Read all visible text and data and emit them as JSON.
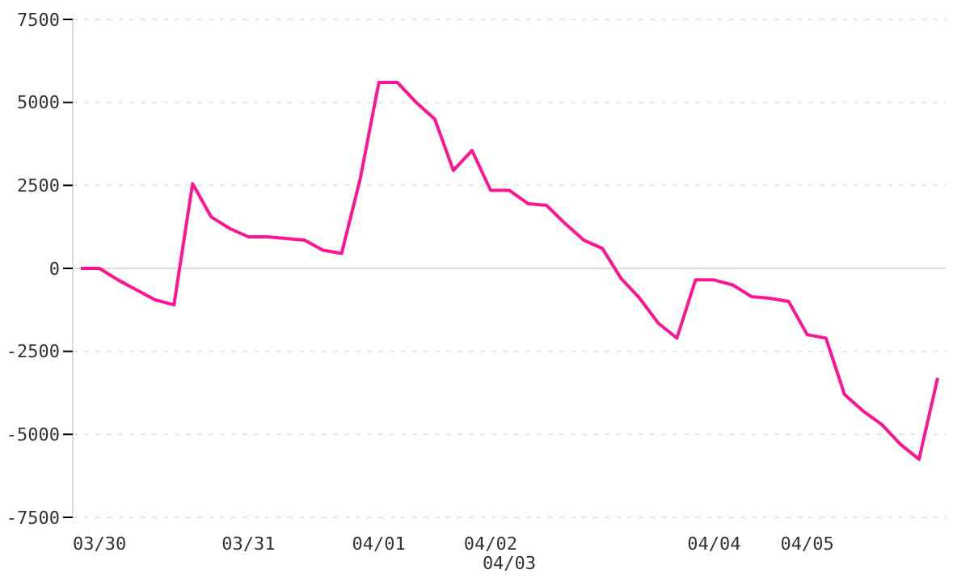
{
  "chart_data": {
    "type": "line",
    "categories": [
      null,
      "03/30",
      null,
      null,
      null,
      null,
      null,
      null,
      null,
      "03/31",
      null,
      null,
      null,
      null,
      null,
      null,
      "04/01",
      null,
      null,
      null,
      null,
      null,
      "04/02",
      "04/03",
      null,
      null,
      null,
      null,
      null,
      null,
      null,
      null,
      null,
      null,
      "04/04",
      null,
      null,
      null,
      null,
      "04/05",
      null,
      null,
      null,
      null,
      null,
      null,
      null
    ],
    "series": [
      {
        "color": "#ff1493",
        "values": [
          0,
          0,
          -350,
          -650,
          -950,
          -1100,
          2550,
          1550,
          1200,
          950,
          950,
          900,
          850,
          550,
          450,
          2700,
          5600,
          5600,
          5000,
          4500,
          2950,
          3550,
          2350,
          2350,
          1950,
          1900,
          1350,
          850,
          600,
          -300,
          -900,
          -1650,
          -2100,
          -350,
          -350,
          -500,
          -850,
          -900,
          -1000,
          -2000,
          -2100,
          -3800,
          -4300,
          -4700,
          -5300,
          -5750,
          -3300
        ]
      }
    ],
    "ylim": [
      -7500,
      7500
    ],
    "yticks": [
      -7500,
      -5000,
      -2500,
      0,
      2500,
      5000,
      7500
    ],
    "grid": "y",
    "ref_lines": [
      {
        "axis": "y",
        "value": 0,
        "color": "#dddddd",
        "line_style": "solid"
      }
    ],
    "marker": "none",
    "line_style": "solid"
  }
}
